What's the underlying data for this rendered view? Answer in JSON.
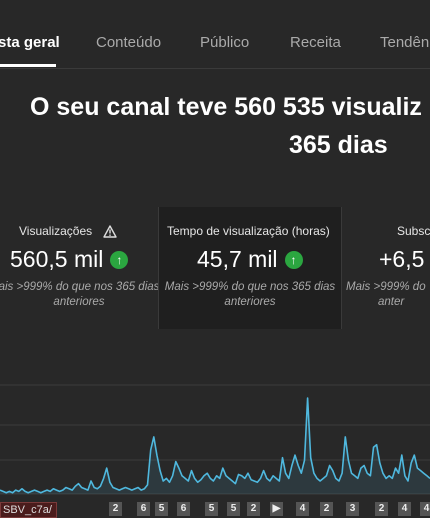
{
  "tabs": [
    {
      "label": "sta geral",
      "active": true
    },
    {
      "label": "Conteúdo",
      "active": false
    },
    {
      "label": "Público",
      "active": false
    },
    {
      "label": "Receita",
      "active": false
    },
    {
      "label": "Tendên",
      "active": false
    }
  ],
  "headline": {
    "line1": "O seu canal teve 560 535 visualiz",
    "line2": "365 dias"
  },
  "cards": [
    {
      "title": "Visualizações",
      "value": "560,5 mil",
      "note_line1": "ais >999% do que nos 365 dias",
      "note_line2": "anteriores",
      "warning_icon": "warning-icon"
    },
    {
      "title": "Tempo de visualização (horas)",
      "value": "45,7 mil",
      "note_line1": "Mais >999% do que nos 365 dias",
      "note_line2": "anteriores"
    },
    {
      "title": "Subsc",
      "value": "+6,5",
      "note_line1": "Mais >999% do",
      "note_line2": "anter"
    }
  ],
  "chart_data": {
    "type": "line",
    "color": "#4fb8de",
    "grid": true,
    "values": [
      3,
      2,
      1,
      2,
      1,
      3,
      2,
      4,
      2,
      1,
      2,
      3,
      2,
      1,
      2,
      3,
      2,
      4,
      3,
      2,
      3,
      5,
      4,
      3,
      6,
      8,
      5,
      4,
      3,
      10,
      5,
      4,
      6,
      12,
      20,
      9,
      5,
      4,
      3,
      4,
      5,
      4,
      3,
      4,
      5,
      3,
      4,
      7,
      34,
      44,
      30,
      18,
      10,
      12,
      9,
      14,
      25,
      20,
      14,
      12,
      10,
      18,
      12,
      9,
      11,
      14,
      16,
      12,
      10,
      14,
      12,
      20,
      14,
      12,
      10,
      8,
      15,
      14,
      12,
      16,
      11,
      10,
      9,
      12,
      18,
      12,
      10,
      14,
      12,
      10,
      28,
      16,
      12,
      22,
      30,
      22,
      16,
      26,
      74,
      28,
      16,
      12,
      10,
      12,
      14,
      22,
      18,
      12,
      10,
      16,
      44,
      26,
      16,
      14,
      12,
      20,
      22,
      16,
      14,
      36,
      38,
      24,
      16,
      12,
      14,
      12,
      20,
      16,
      30,
      14,
      10,
      24,
      30,
      20,
      18,
      16,
      14,
      12
    ]
  },
  "footer": {
    "filename": "SBV_c7a/",
    "markers": [
      "2",
      "6",
      "5",
      "6",
      "5",
      "5",
      "2",
      "▶",
      "4",
      "2",
      "3",
      "2",
      "4",
      "4"
    ]
  }
}
